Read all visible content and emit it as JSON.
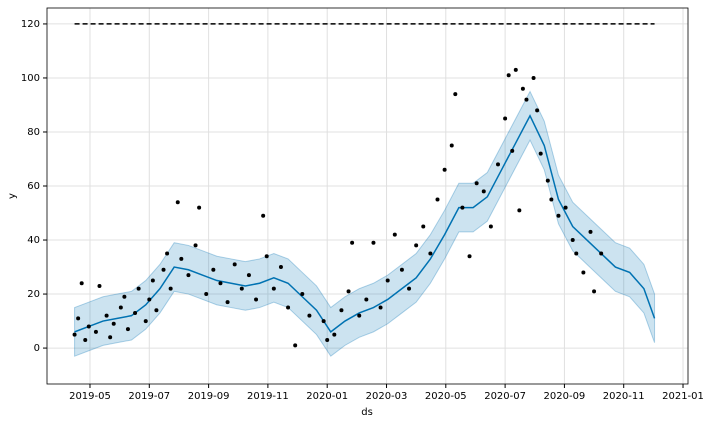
{
  "chart_data": {
    "type": "line",
    "xlabel": "ds",
    "ylabel": "y",
    "grid": true,
    "xlim": [
      2019.2125,
      2021.014
    ],
    "ylim": [
      -13.3,
      125.9
    ],
    "xticks": [
      {
        "value": 2019.3333,
        "label": "2019-05"
      },
      {
        "value": 2019.5,
        "label": "2019-07"
      },
      {
        "value": 2019.6667,
        "label": "2019-09"
      },
      {
        "value": 2019.8333,
        "label": "2019-11"
      },
      {
        "value": 2020,
        "label": "2020-01"
      },
      {
        "value": 2020.1667,
        "label": "2020-03"
      },
      {
        "value": 2020.3333,
        "label": "2020-05"
      },
      {
        "value": 2020.5,
        "label": "2020-07"
      },
      {
        "value": 2020.6667,
        "label": "2020-09"
      },
      {
        "value": 2020.8333,
        "label": "2020-11"
      },
      {
        "value": 2021,
        "label": "2021-01"
      }
    ],
    "yticks": [
      0,
      20,
      40,
      60,
      80,
      100,
      120
    ],
    "series": [
      {
        "mark": "line-band",
        "color": "#0072B2",
        "x": [
          2019.29,
          2019.33,
          2019.37,
          2019.41,
          2019.45,
          2019.49,
          2019.53,
          2019.57,
          2019.61,
          2019.65,
          2019.69,
          2019.73,
          2019.77,
          2019.81,
          2019.85,
          2019.89,
          2019.93,
          2019.97,
          2020.01,
          2020.05,
          2020.09,
          2020.13,
          2020.17,
          2020.21,
          2020.25,
          2020.29,
          2020.33,
          2020.37,
          2020.41,
          2020.45,
          2020.49,
          2020.53,
          2020.57,
          2020.61,
          2020.65,
          2020.69,
          2020.73,
          2020.77,
          2020.81,
          2020.85,
          2020.89,
          2020.92
        ],
        "values": [
          6,
          8,
          10,
          11,
          12,
          16,
          22,
          30,
          29,
          27,
          25,
          24,
          23,
          24,
          26,
          24,
          19,
          14,
          6,
          10,
          13,
          15,
          18,
          22,
          26,
          33,
          42,
          52,
          52,
          56,
          66,
          76,
          86,
          75,
          55,
          45,
          40,
          35,
          30,
          28,
          22,
          11
        ],
        "lower": [
          -3,
          -1,
          1,
          2,
          3,
          7,
          13,
          21,
          20,
          18,
          16,
          15,
          14,
          15,
          17,
          15,
          10,
          5,
          -3,
          1,
          4,
          6,
          9,
          13,
          17,
          24,
          33,
          43,
          43,
          47,
          57,
          67,
          77,
          66,
          46,
          36,
          31,
          26,
          21,
          19,
          13,
          2
        ],
        "upper": [
          15,
          17,
          19,
          20,
          21,
          25,
          31,
          39,
          38,
          36,
          34,
          33,
          32,
          33,
          35,
          33,
          28,
          23,
          15,
          19,
          22,
          24,
          27,
          31,
          35,
          42,
          51,
          61,
          61,
          65,
          75,
          85,
          95,
          84,
          64,
          54,
          49,
          44,
          39,
          37,
          31,
          20
        ]
      },
      {
        "mark": "dot",
        "color": "#000000",
        "x": [
          2019.29,
          2019.3,
          2019.31,
          2019.32,
          2019.33,
          2019.35,
          2019.36,
          2019.38,
          2019.39,
          2019.4,
          2019.42,
          2019.43,
          2019.44,
          2019.46,
          2019.47,
          2019.49,
          2019.5,
          2019.51,
          2019.52,
          2019.54,
          2019.55,
          2019.56,
          2019.58,
          2019.59,
          2019.61,
          2019.63,
          2019.64,
          2019.66,
          2019.68,
          2019.7,
          2019.72,
          2019.74,
          2019.76,
          2019.78,
          2019.8,
          2019.82,
          2019.83,
          2019.85,
          2019.87,
          2019.89,
          2019.91,
          2019.93,
          2019.95,
          2019.99,
          2020.0,
          2020.02,
          2020.04,
          2020.06,
          2020.07,
          2020.09,
          2020.11,
          2020.13,
          2020.15,
          2020.17,
          2020.19,
          2020.21,
          2020.23,
          2020.25,
          2020.27,
          2020.29,
          2020.31,
          2020.33,
          2020.35,
          2020.36,
          2020.38,
          2020.4,
          2020.42,
          2020.44,
          2020.46,
          2020.48,
          2020.5,
          2020.51,
          2020.52,
          2020.53,
          2020.54,
          2020.55,
          2020.56,
          2020.58,
          2020.59,
          2020.6,
          2020.62,
          2020.63,
          2020.65,
          2020.67,
          2020.69,
          2020.7,
          2020.72,
          2020.74,
          2020.75,
          2020.77
        ],
        "values": [
          5,
          11,
          24,
          3,
          8,
          6,
          23,
          12,
          4,
          9,
          15,
          19,
          7,
          13,
          22,
          10,
          18,
          25,
          14,
          29,
          35,
          22,
          54,
          33,
          27,
          38,
          52,
          20,
          29,
          24,
          17,
          31,
          22,
          27,
          18,
          49,
          34,
          22,
          30,
          15,
          1,
          20,
          12,
          10,
          3,
          5,
          14,
          21,
          39,
          12,
          18,
          39,
          15,
          25,
          42,
          29,
          22,
          38,
          45,
          35,
          55,
          66,
          75,
          94,
          52,
          34,
          61,
          58,
          45,
          68,
          85,
          101,
          73,
          103,
          51,
          96,
          92,
          100,
          88,
          72,
          62,
          55,
          49,
          52,
          40,
          35,
          28,
          43,
          21,
          35
        ]
      },
      {
        "mark": "dashed-line",
        "color": "#000000",
        "x": [
          2019.29,
          2020.92
        ],
        "values": [
          120,
          120
        ]
      }
    ]
  }
}
